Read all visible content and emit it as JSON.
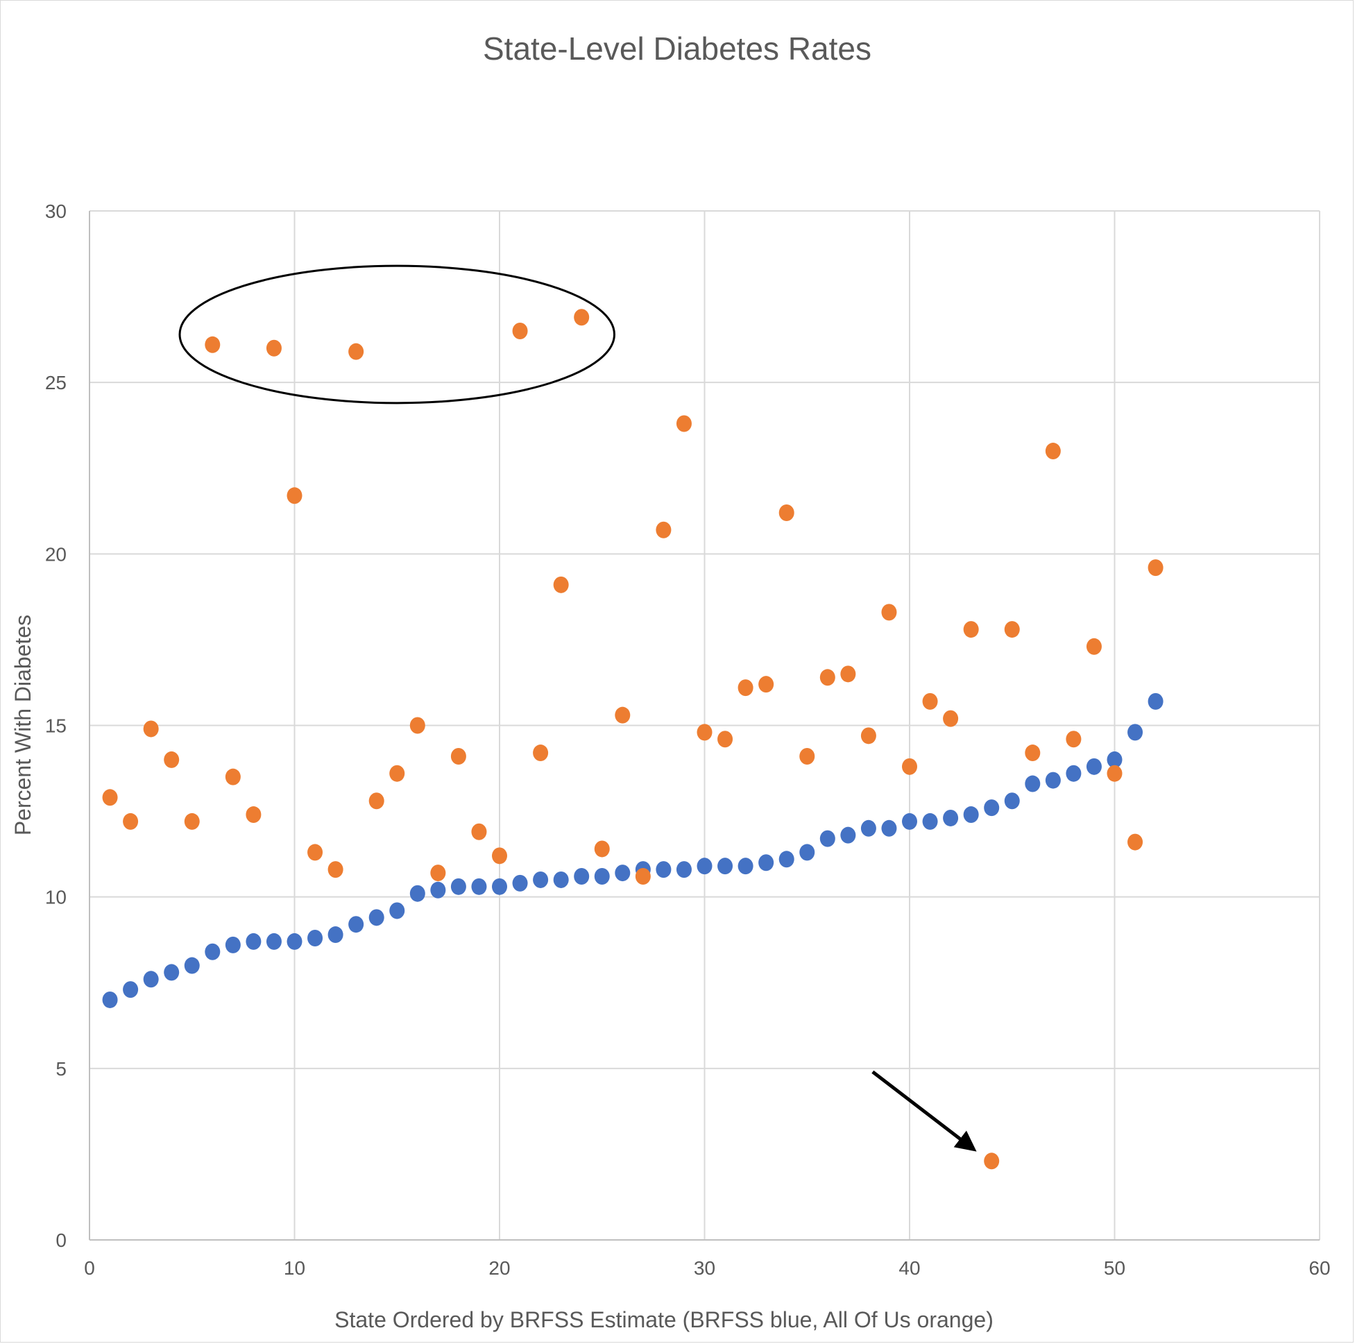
{
  "chart_data": {
    "type": "scatter",
    "title": "State-Level Diabetes Rates",
    "xlabel": "State Ordered by BRFSS Estimate (BRFSS blue, All Of Us orange)",
    "ylabel": "Percent With Diabetes",
    "xlim": [
      0,
      60
    ],
    "ylim": [
      0,
      30
    ],
    "x_ticks": [
      0,
      10,
      20,
      30,
      40,
      50,
      60
    ],
    "y_ticks": [
      0,
      5,
      10,
      15,
      20,
      25,
      30
    ],
    "grid": true,
    "legend": "none",
    "series": [
      {
        "name": "BRFSS",
        "color": "#4472c4",
        "x": [
          1,
          2,
          3,
          4,
          5,
          6,
          7,
          8,
          9,
          10,
          11,
          12,
          13,
          14,
          15,
          16,
          17,
          18,
          19,
          20,
          21,
          22,
          23,
          24,
          25,
          26,
          27,
          28,
          29,
          30,
          31,
          32,
          33,
          34,
          35,
          36,
          37,
          38,
          39,
          40,
          41,
          42,
          43,
          44,
          45,
          46,
          47,
          48,
          49,
          50,
          51,
          52
        ],
        "y": [
          7.0,
          7.3,
          7.6,
          7.8,
          8.0,
          8.4,
          8.6,
          8.7,
          8.7,
          8.7,
          8.8,
          8.9,
          9.2,
          9.4,
          9.6,
          10.1,
          10.2,
          10.3,
          10.3,
          10.3,
          10.4,
          10.5,
          10.5,
          10.6,
          10.6,
          10.7,
          10.8,
          10.8,
          10.8,
          10.9,
          10.9,
          10.9,
          11.0,
          11.1,
          11.3,
          11.7,
          11.8,
          12.0,
          12.0,
          12.2,
          12.2,
          12.3,
          12.4,
          12.6,
          12.8,
          13.3,
          13.4,
          13.6,
          13.8,
          14.0,
          14.8,
          15.7
        ]
      },
      {
        "name": "All Of Us",
        "color": "#ed7d31",
        "x": [
          1,
          2,
          3,
          4,
          5,
          6,
          7,
          8,
          9,
          10,
          11,
          12,
          13,
          14,
          15,
          16,
          17,
          18,
          19,
          20,
          21,
          22,
          23,
          24,
          25,
          26,
          27,
          28,
          29,
          30,
          31,
          32,
          33,
          34,
          35,
          36,
          37,
          38,
          39,
          40,
          41,
          42,
          43,
          44,
          45,
          46,
          47,
          48,
          49,
          50,
          51,
          52
        ],
        "y": [
          12.9,
          12.2,
          14.9,
          14.0,
          12.2,
          26.1,
          13.5,
          12.4,
          26.0,
          21.7,
          11.3,
          10.8,
          25.9,
          12.8,
          13.6,
          15.0,
          10.7,
          14.1,
          11.9,
          11.2,
          26.5,
          14.2,
          19.1,
          26.9,
          11.4,
          15.3,
          10.6,
          20.7,
          23.8,
          14.8,
          14.6,
          16.1,
          16.2,
          21.2,
          14.1,
          16.4,
          16.5,
          14.7,
          18.3,
          13.8,
          15.7,
          15.2,
          17.8,
          2.3,
          17.8,
          14.2,
          23.0,
          14.6,
          17.3,
          13.6,
          11.6,
          19.6
        ]
      }
    ],
    "annotations": [
      {
        "type": "ellipse",
        "label": "circled high All Of Us outliers",
        "x_range": [
          4.4,
          25.6
        ],
        "y_range": [
          24.4,
          28.4
        ]
      },
      {
        "type": "arrow",
        "label": "arrow pointing to low All Of Us outlier",
        "from": [
          38.2,
          4.9
        ],
        "to": [
          43.0,
          2.7
        ]
      }
    ]
  }
}
